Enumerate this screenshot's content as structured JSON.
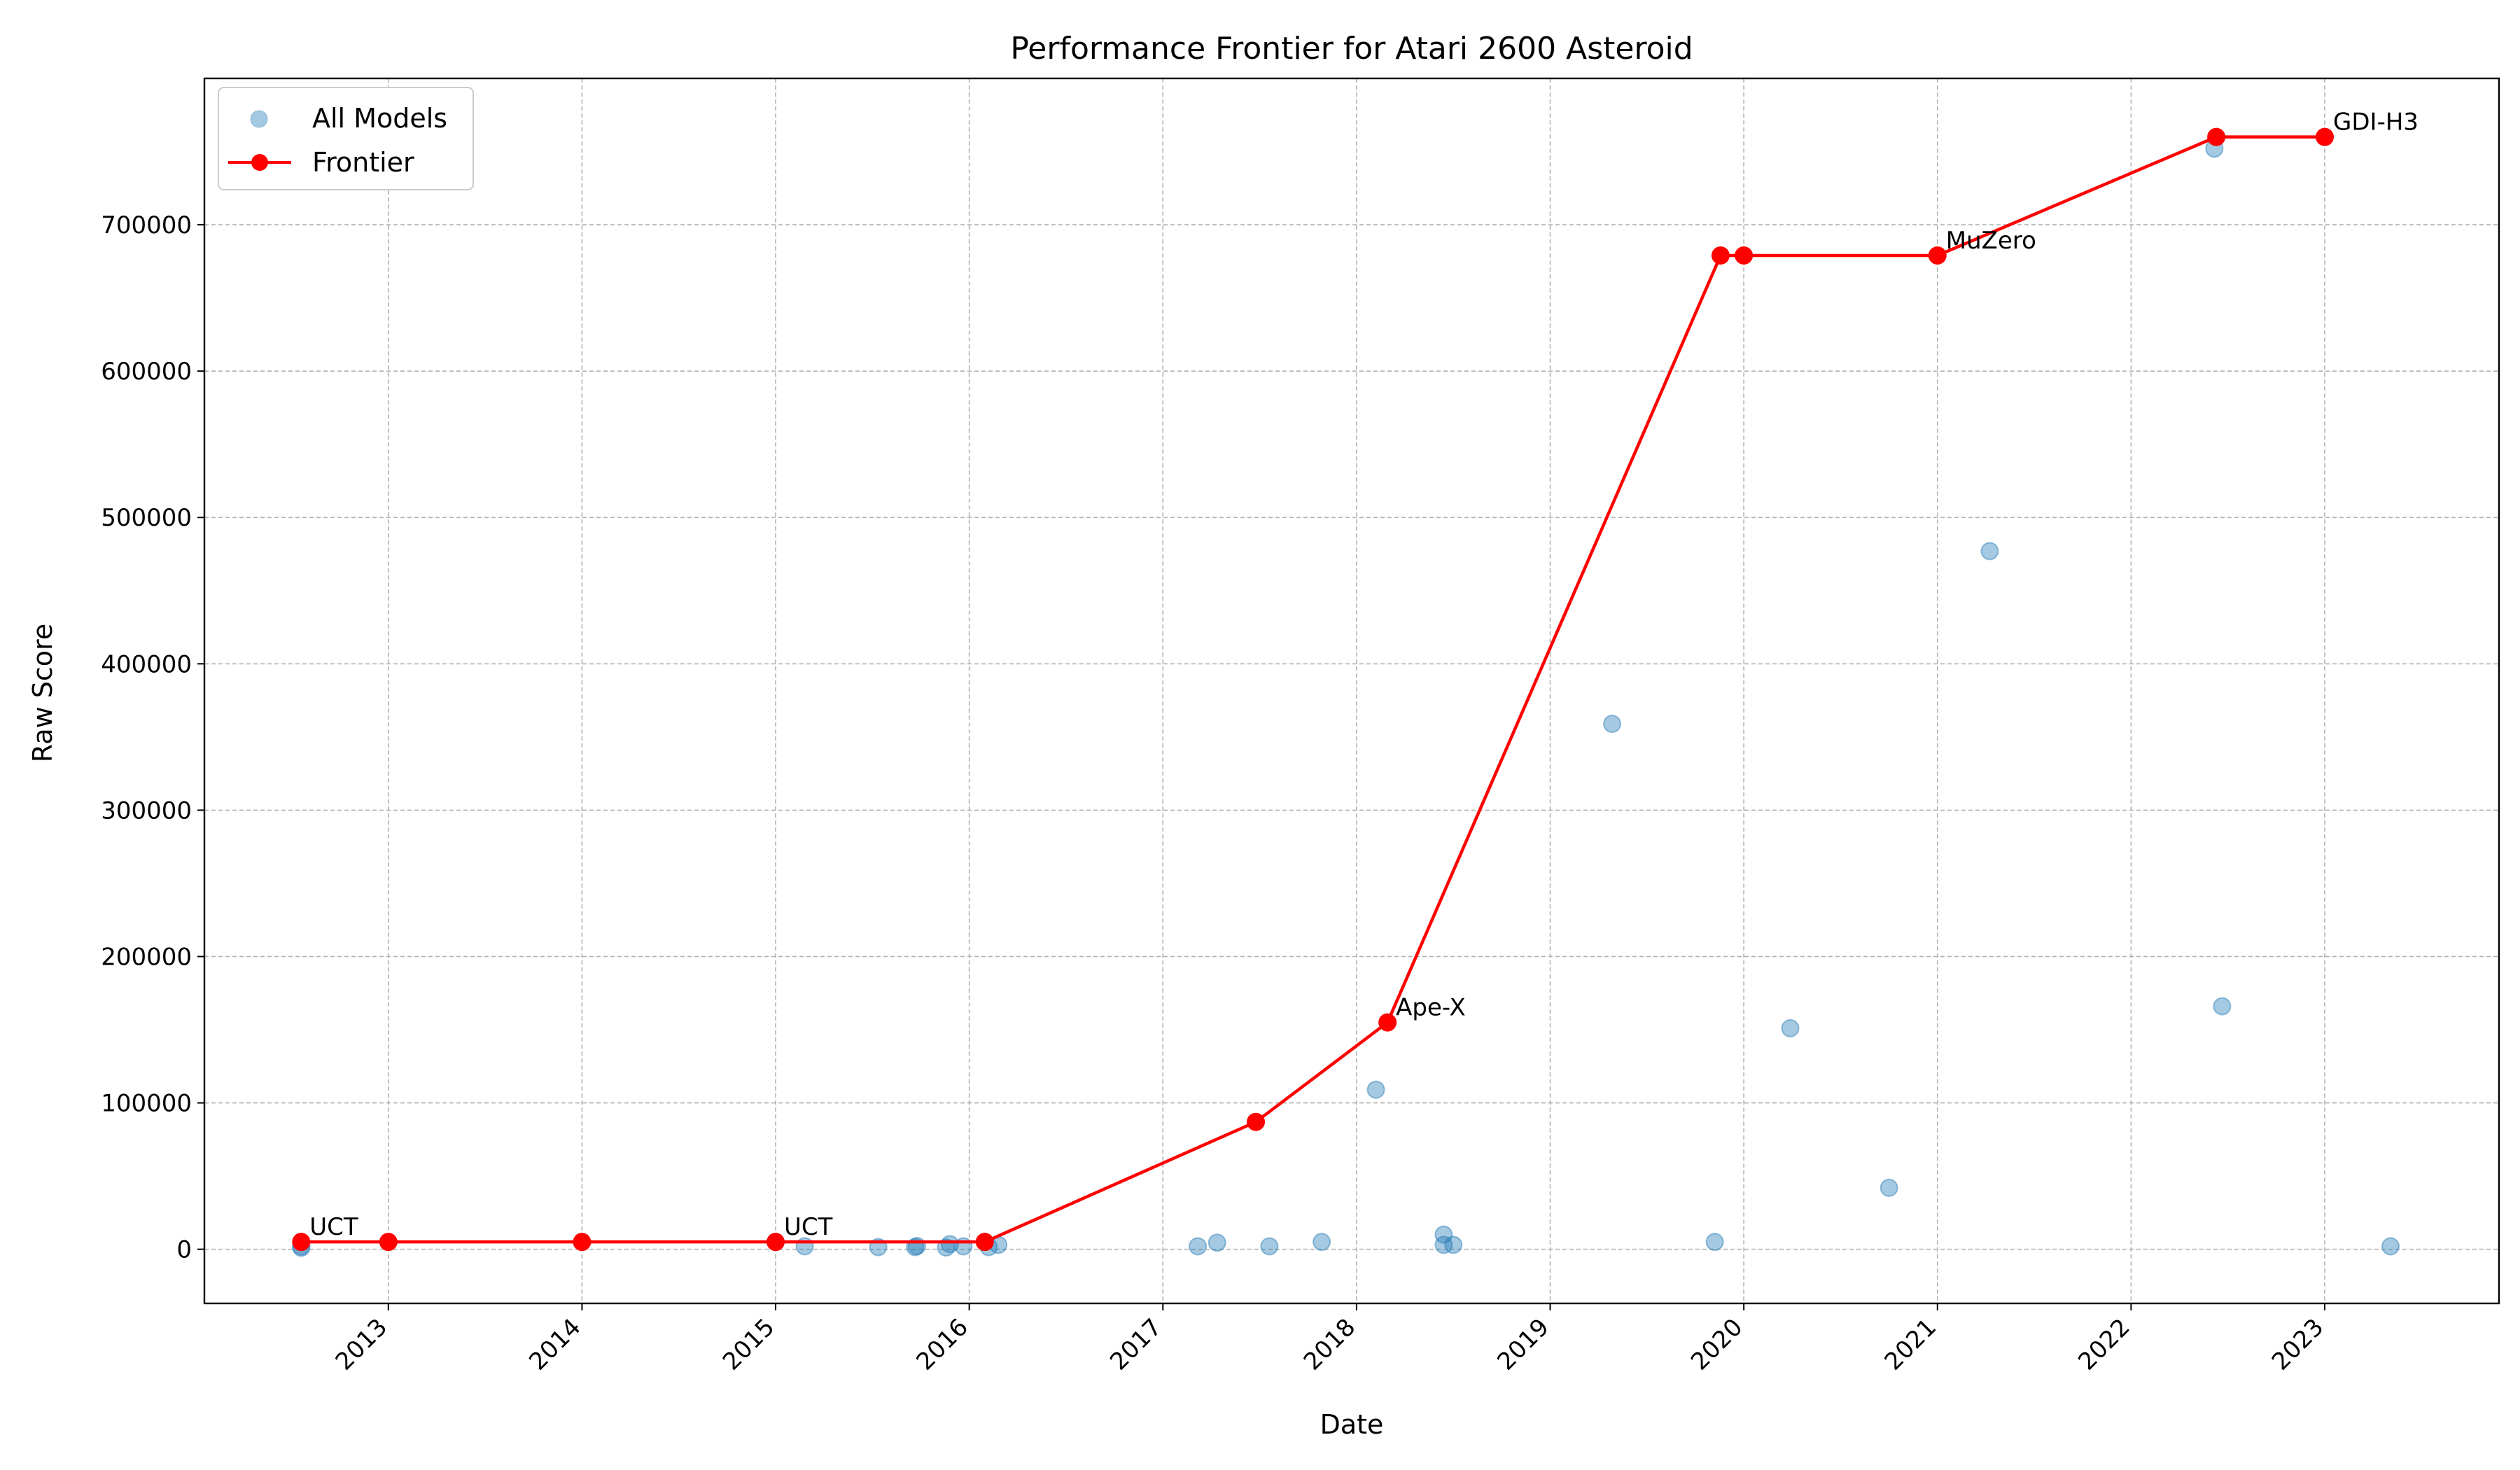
{
  "chart_data": {
    "type": "scatter",
    "title": "Performance Frontier for Atari 2600 Asteroid",
    "xlabel": "Date",
    "ylabel": "Raw Score",
    "xlim": [
      2012.05,
      2023.9
    ],
    "ylim": [
      -37000,
      800000
    ],
    "x_ticks": [
      "2013",
      "2014",
      "2015",
      "2016",
      "2017",
      "2018",
      "2019",
      "2020",
      "2021",
      "2022",
      "2023"
    ],
    "y_ticks": [
      "0",
      "100000",
      "200000",
      "300000",
      "400000",
      "500000",
      "600000",
      "700000"
    ],
    "grid": true,
    "legend_position": "top-left",
    "colors": {
      "all_models": "#1f77b4",
      "frontier": "#ff0000"
    },
    "series": [
      {
        "name": "All Models",
        "kind": "scatter",
        "points": [
          [
            2012.55,
            1000
          ],
          [
            2012.55,
            2000
          ],
          [
            2015.15,
            2000
          ],
          [
            2015.53,
            1500
          ],
          [
            2015.72,
            1500
          ],
          [
            2015.73,
            2200
          ],
          [
            2015.88,
            1200
          ],
          [
            2015.9,
            3500
          ],
          [
            2015.97,
            2000
          ],
          [
            2016.1,
            1500
          ],
          [
            2016.15,
            3000
          ],
          [
            2017.18,
            2000
          ],
          [
            2017.28,
            4500
          ],
          [
            2017.55,
            2000
          ],
          [
            2017.82,
            5000
          ],
          [
            2018.1,
            109000
          ],
          [
            2018.45,
            10000
          ],
          [
            2018.45,
            3000
          ],
          [
            2018.5,
            3000
          ],
          [
            2019.32,
            359000
          ],
          [
            2019.85,
            5000
          ],
          [
            2020.24,
            151000
          ],
          [
            2020.75,
            42000
          ],
          [
            2021.27,
            477000
          ],
          [
            2022.43,
            752000
          ],
          [
            2022.47,
            166000
          ],
          [
            2023.34,
            2000
          ]
        ]
      },
      {
        "name": "Frontier",
        "kind": "line",
        "points": [
          [
            2012.55,
            5000
          ],
          [
            2013.0,
            5000
          ],
          [
            2014.0,
            5000
          ],
          [
            2015.0,
            5000
          ],
          [
            2016.08,
            5000
          ],
          [
            2017.48,
            87000
          ],
          [
            2018.16,
            155000
          ],
          [
            2019.88,
            679000
          ],
          [
            2020.0,
            679000
          ],
          [
            2021.0,
            679000
          ],
          [
            2022.44,
            760000
          ],
          [
            2023.0,
            760000
          ]
        ]
      }
    ],
    "annotations": [
      {
        "text": "UCT",
        "x": 2012.55,
        "y": 5000
      },
      {
        "text": "UCT",
        "x": 2015.0,
        "y": 5000
      },
      {
        "text": "Ape-X",
        "x": 2018.16,
        "y": 155000
      },
      {
        "text": "MuZero",
        "x": 2021.0,
        "y": 679000
      },
      {
        "text": "GDI-H3",
        "x": 2023.0,
        "y": 760000
      }
    ]
  }
}
